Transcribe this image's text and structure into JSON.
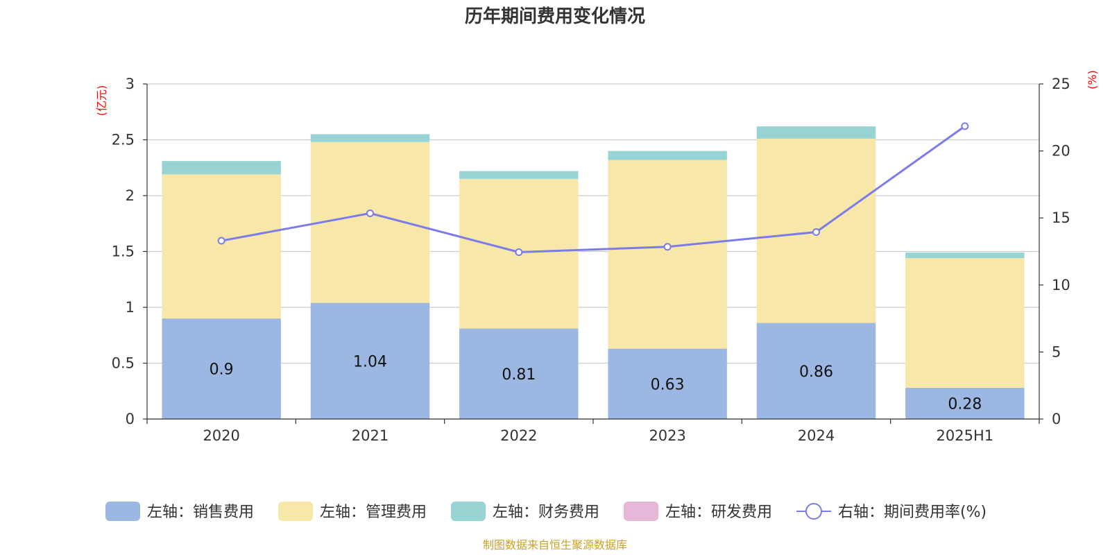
{
  "chart_data": {
    "type": "bar",
    "title": "历年期间费用变化情况",
    "categories": [
      "2020",
      "2021",
      "2022",
      "2023",
      "2024",
      "2025H1"
    ],
    "left_axis": {
      "unit": "(亿元)",
      "ylim": [
        0,
        3
      ],
      "ticks": [
        "0",
        "0.5",
        "1",
        "1.5",
        "2",
        "2.5",
        "3"
      ]
    },
    "right_axis": {
      "unit": "(%)",
      "ylim": [
        0,
        25
      ],
      "ticks": [
        "0",
        "5",
        "10",
        "15",
        "20",
        "25"
      ]
    },
    "series": [
      {
        "name": "左轴：销售费用",
        "kind": "bar",
        "axis": "left",
        "color": "#9cb8e2",
        "values": [
          0.9,
          1.04,
          0.81,
          0.63,
          0.86,
          0.28
        ],
        "labels": [
          "0.9",
          "1.04",
          "0.81",
          "0.63",
          "0.86",
          "0.28"
        ]
      },
      {
        "name": "左轴：管理费用",
        "kind": "bar",
        "axis": "left",
        "color": "#f7e7a8",
        "values": [
          1.29,
          1.44,
          1.34,
          1.69,
          1.65,
          1.16
        ]
      },
      {
        "name": "左轴：财务费用",
        "kind": "bar",
        "axis": "left",
        "color": "#98d4d4",
        "values": [
          0.12,
          0.07,
          0.07,
          0.08,
          0.11,
          0.05
        ]
      },
      {
        "name": "左轴：研发费用",
        "kind": "bar",
        "axis": "left",
        "color": "#e8b8d8",
        "values": [
          0,
          0,
          0,
          0,
          0,
          0
        ]
      },
      {
        "name": "右轴：期间费用率(%)",
        "kind": "line",
        "axis": "right",
        "color": "#7b7bea",
        "values": [
          13.3,
          15.35,
          12.45,
          12.85,
          13.95,
          21.85
        ]
      }
    ],
    "grid": true,
    "legend_position": "bottom-center",
    "source": "制图数据来自恒生聚源数据库"
  }
}
